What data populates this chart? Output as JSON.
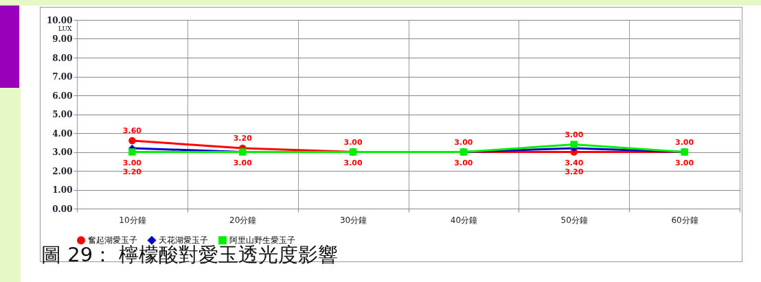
{
  "chart_data": {
    "type": "line",
    "title": "圖 29： 檸檬酸對愛玉透光度影響",
    "ylabel": "LUX",
    "categories": [
      "10分鐘",
      "20分鐘",
      "30分鐘",
      "40分鐘",
      "50分鐘",
      "60分鐘"
    ],
    "series": [
      {
        "name": "奮起湖愛玉子",
        "color": "#ff0000",
        "marker": "circle",
        "values": [
          3.6,
          3.2,
          3.0,
          3.0,
          3.0,
          3.0
        ],
        "value_labels": [
          "3.60",
          "3.20",
          "3.00",
          "3.00",
          "3.00",
          "3.00"
        ]
      },
      {
        "name": "天花湖愛玉子",
        "color": "#0000cc",
        "marker": "diamond",
        "values": [
          3.2,
          3.0,
          3.0,
          3.0,
          3.2,
          3.0
        ],
        "value_labels": [
          "3.20",
          null,
          null,
          null,
          "3.20",
          null
        ]
      },
      {
        "name": "阿里山野生愛玉子",
        "color": "#00ee00",
        "marker": "square",
        "values": [
          3.0,
          3.0,
          3.0,
          3.0,
          3.4,
          3.0
        ],
        "value_labels": [
          "3.00",
          "3.00",
          "3.00",
          "3.00",
          "3.40",
          "3.00"
        ]
      }
    ],
    "ylim": [
      0,
      10
    ],
    "yticks": [
      {
        "value": 0,
        "label": "0.00"
      },
      {
        "value": 1,
        "label": "1.00"
      },
      {
        "value": 2,
        "label": "2.00"
      },
      {
        "value": 3,
        "label": "3.00"
      },
      {
        "value": 4,
        "label": "4.00"
      },
      {
        "value": 5,
        "label": "5.00"
      },
      {
        "value": 6,
        "label": "6.00"
      },
      {
        "value": 7,
        "label": "7.00"
      },
      {
        "value": 8,
        "label": "8.00"
      },
      {
        "value": 9,
        "label": "9.00"
      },
      {
        "value": 10,
        "label": "10.00"
      }
    ],
    "grid": true,
    "legend": "bottom"
  }
}
